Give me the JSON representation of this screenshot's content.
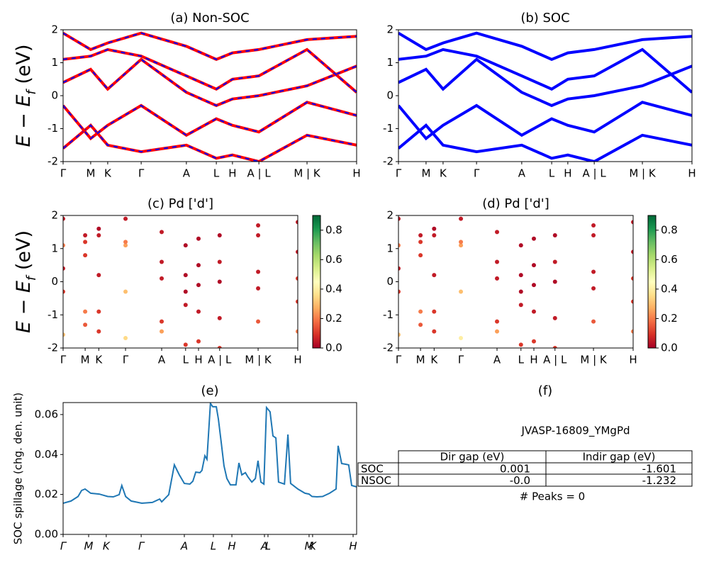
{
  "chart_data": [
    {
      "type": "bands",
      "title": "(a) Non-SOC",
      "ylabel": [
        "E − E",
        "f",
        " (eV)"
      ],
      "line_color": "#ff0000",
      "dash_color": "#0000ff",
      "x": [
        0,
        0.094,
        0.152,
        0.266,
        0.42,
        0.522,
        0.577,
        0.667,
        0.831,
        1
      ],
      "xlim": [
        0,
        1
      ],
      "ylim": [
        -2,
        2
      ],
      "yticks": [
        -2,
        -1,
        0,
        1,
        2
      ],
      "xticks": [
        {
          "value": 0,
          "label": "Γ"
        },
        {
          "value": 0.094,
          "label": "M"
        },
        {
          "value": 0.152,
          "label": "K"
        },
        {
          "value": 0.266,
          "label": "Γ"
        },
        {
          "value": 0.42,
          "label": "A"
        },
        {
          "value": 0.522,
          "label": "L"
        },
        {
          "value": 0.577,
          "label": "H"
        },
        {
          "value": 0.667,
          "label": "A | L"
        },
        {
          "value": 0.831,
          "label": "M | K"
        },
        {
          "value": 1,
          "label": "H"
        }
      ],
      "series": [
        {
          "values": [
            -1.6,
            -0.9,
            -1.5,
            -1.7,
            -1.5,
            -1.9,
            -1.8,
            -2,
            -1.2,
            -1.5
          ]
        },
        {
          "values": [
            -0.3,
            -1.3,
            -0.9,
            -0.3,
            -1.2,
            -0.7,
            -0.9,
            -1.1,
            -0.2,
            -0.6
          ]
        },
        {
          "values": [
            0.4,
            0.8,
            0.2,
            1.1,
            0.1,
            -0.3,
            -0.1,
            0,
            0.3,
            0.9
          ]
        },
        {
          "values": [
            1.1,
            1.2,
            1.4,
            1.2,
            0.6,
            0.2,
            0.5,
            0.6,
            1.4,
            0.1
          ]
        },
        {
          "values": [
            1.9,
            1.4,
            1.6,
            1.9,
            1.5,
            1.1,
            1.3,
            1.4,
            1.7,
            1.8
          ]
        }
      ]
    },
    {
      "type": "bands",
      "title": "(b) SOC",
      "line_color": "#0000ff",
      "x": [
        0,
        0.094,
        0.152,
        0.266,
        0.42,
        0.522,
        0.577,
        0.667,
        0.831,
        1
      ],
      "xlim": [
        0,
        1
      ],
      "ylim": [
        -2,
        2
      ],
      "yticks": [
        -2,
        -1,
        0,
        1,
        2
      ],
      "xticks": [
        {
          "value": 0,
          "label": "Γ"
        },
        {
          "value": 0.094,
          "label": "M"
        },
        {
          "value": 0.152,
          "label": "K"
        },
        {
          "value": 0.266,
          "label": "Γ"
        },
        {
          "value": 0.42,
          "label": "A"
        },
        {
          "value": 0.522,
          "label": "L"
        },
        {
          "value": 0.577,
          "label": "H"
        },
        {
          "value": 0.667,
          "label": "A | L"
        },
        {
          "value": 0.831,
          "label": "M | K"
        },
        {
          "value": 1,
          "label": "H"
        }
      ],
      "series": [
        {
          "values": [
            -1.6,
            -0.9,
            -1.5,
            -1.7,
            -1.5,
            -1.9,
            -1.8,
            -2,
            -1.2,
            -1.5
          ]
        },
        {
          "values": [
            -0.3,
            -1.3,
            -0.9,
            -0.3,
            -1.2,
            -0.7,
            -0.9,
            -1.1,
            -0.2,
            -0.6
          ]
        },
        {
          "values": [
            0.4,
            0.8,
            0.2,
            1.1,
            0.1,
            -0.3,
            -0.1,
            0,
            0.3,
            0.9
          ]
        },
        {
          "values": [
            1.1,
            1.2,
            1.4,
            1.2,
            0.6,
            0.2,
            0.5,
            0.6,
            1.4,
            0.1
          ]
        },
        {
          "values": [
            1.9,
            1.4,
            1.6,
            1.9,
            1.5,
            1.1,
            1.3,
            1.4,
            1.7,
            1.8
          ]
        }
      ]
    },
    {
      "type": "scatter",
      "title": "(c)  Pd ['d']",
      "ylabel": [
        "E − E",
        "f",
        " (eV)"
      ],
      "colormap": [
        "#a50026",
        "#d73027",
        "#f46d43",
        "#fdae61",
        "#fee08b",
        "#ffffbf",
        "#d9ef8b",
        "#a6d96a",
        "#66bd63",
        "#1a9850",
        "#006837"
      ],
      "clim": [
        0,
        0.9
      ],
      "cticks": [
        {
          "value": 0,
          "label": "0.0"
        },
        0.2,
        0.4,
        0.6,
        0.8
      ],
      "x": [
        0,
        0.094,
        0.152,
        0.266,
        0.42,
        0.522,
        0.577,
        0.667,
        0.831,
        1
      ],
      "xlim": [
        0,
        1
      ],
      "ylim": [
        -2,
        2
      ],
      "yticks": [
        -2,
        -1,
        0,
        1,
        2
      ],
      "xticks": [
        {
          "value": 0,
          "label": "Γ"
        },
        {
          "value": 0.094,
          "label": "M"
        },
        {
          "value": 0.152,
          "label": "K"
        },
        {
          "value": 0.266,
          "label": "Γ"
        },
        {
          "value": 0.42,
          "label": "A"
        },
        {
          "value": 0.522,
          "label": "L"
        },
        {
          "value": 0.577,
          "label": "H"
        },
        {
          "value": 0.667,
          "label": "A | L"
        },
        {
          "value": 0.831,
          "label": "M | K"
        },
        {
          "value": 1,
          "label": "H"
        }
      ],
      "series": [
        {
          "values": [
            -1.6,
            -0.9,
            -1.5,
            -1.7,
            -1.5,
            -1.9,
            -1.8,
            -2,
            -1.2,
            -1.5
          ],
          "weights": [
            0.3,
            0.2,
            0.1,
            0.35,
            0.25,
            0.1,
            0.1,
            0.1,
            0.15,
            0.2
          ]
        },
        {
          "values": [
            -0.3,
            -1.3,
            -0.9,
            -0.3,
            -1.2,
            -0.7,
            -0.9,
            -1.1,
            -0.2,
            -0.6
          ],
          "weights": [
            0.1,
            0.15,
            0.1,
            0.3,
            0.1,
            0.05,
            0.05,
            0.05,
            0.05,
            0.1
          ]
        },
        {
          "values": [
            0.4,
            0.8,
            0.2,
            1.1,
            0.1,
            -0.3,
            -0.1,
            0,
            0.3,
            0.9
          ],
          "weights": [
            0.05,
            0.1,
            0.05,
            0.25,
            0.05,
            0.02,
            0.02,
            0.02,
            0.05,
            0.05
          ]
        },
        {
          "values": [
            1.1,
            1.2,
            1.4,
            1.2,
            0.6,
            0.2,
            0.5,
            0.6,
            1.4,
            0.1
          ],
          "weights": [
            0.2,
            0.1,
            0.05,
            0.2,
            0.05,
            0.02,
            0.02,
            0.05,
            0.05,
            0.1
          ]
        },
        {
          "values": [
            1.9,
            1.4,
            1.6,
            1.9,
            1.5,
            1.1,
            1.3,
            1.4,
            1.7,
            1.8
          ],
          "weights": [
            0.05,
            0.05,
            0.02,
            0.05,
            0.05,
            0.02,
            0.02,
            0.02,
            0.05,
            0.05
          ]
        }
      ]
    },
    {
      "type": "scatter",
      "title": "(d) Pd ['d']",
      "colormap": [
        "#a50026",
        "#d73027",
        "#f46d43",
        "#fdae61",
        "#fee08b",
        "#ffffbf",
        "#d9ef8b",
        "#a6d96a",
        "#66bd63",
        "#1a9850",
        "#006837"
      ],
      "clim": [
        0,
        0.9
      ],
      "cticks": [
        {
          "value": 0,
          "label": "0.0"
        },
        0.2,
        0.4,
        0.6,
        0.8
      ],
      "x": [
        0,
        0.094,
        0.152,
        0.266,
        0.42,
        0.522,
        0.577,
        0.667,
        0.831,
        1
      ],
      "xlim": [
        0,
        1
      ],
      "ylim": [
        -2,
        2
      ],
      "yticks": [
        -2,
        -1,
        0,
        1,
        2
      ],
      "xticks": [
        {
          "value": 0,
          "label": "Γ"
        },
        {
          "value": 0.094,
          "label": "M"
        },
        {
          "value": 0.152,
          "label": "K"
        },
        {
          "value": 0.266,
          "label": "Γ"
        },
        {
          "value": 0.42,
          "label": "A"
        },
        {
          "value": 0.522,
          "label": "L"
        },
        {
          "value": 0.577,
          "label": "H"
        },
        {
          "value": 0.667,
          "label": "A | L"
        },
        {
          "value": 0.831,
          "label": "M | K"
        },
        {
          "value": 1,
          "label": "H"
        }
      ],
      "series": [
        {
          "values": [
            -1.6,
            -0.9,
            -1.5,
            -1.7,
            -1.5,
            -1.9,
            -1.8,
            -2,
            -1.2,
            -1.5
          ],
          "weights": [
            0.3,
            0.2,
            0.1,
            0.4,
            0.25,
            0.1,
            0.1,
            0.1,
            0.15,
            0.2
          ]
        },
        {
          "values": [
            -0.3,
            -1.3,
            -0.9,
            -0.3,
            -1.2,
            -0.7,
            -0.9,
            -1.1,
            -0.2,
            -0.6
          ],
          "weights": [
            0.1,
            0.15,
            0.1,
            0.3,
            0.1,
            0.05,
            0.05,
            0.05,
            0.05,
            0.1
          ]
        },
        {
          "values": [
            0.4,
            0.8,
            0.2,
            1.1,
            0.1,
            -0.3,
            -0.1,
            0,
            0.3,
            0.9
          ],
          "weights": [
            0.05,
            0.1,
            0.05,
            0.25,
            0.05,
            0.02,
            0.02,
            0.02,
            0.05,
            0.05
          ]
        },
        {
          "values": [
            1.1,
            1.2,
            1.4,
            1.2,
            0.6,
            0.2,
            0.5,
            0.6,
            1.4,
            0.1
          ],
          "weights": [
            0.2,
            0.1,
            0.05,
            0.2,
            0.05,
            0.02,
            0.02,
            0.05,
            0.05,
            0.1
          ]
        },
        {
          "values": [
            1.9,
            1.4,
            1.6,
            1.9,
            1.5,
            1.1,
            1.3,
            1.4,
            1.7,
            1.8
          ],
          "weights": [
            0.05,
            0.05,
            0.02,
            0.05,
            0.05,
            0.02,
            0.02,
            0.02,
            0.05,
            0.05
          ]
        }
      ]
    },
    {
      "type": "line",
      "title": "(e)",
      "ylabel_text": "SOC spillage (chg. den. unit)",
      "color": "#1f77b4",
      "italic_ticks": true,
      "xlim": [
        0,
        1
      ],
      "ylim": [
        0,
        0.066
      ],
      "yticks": [
        {
          "value": 0,
          "label": "0.00"
        },
        {
          "value": 0.02,
          "label": "0.02"
        },
        {
          "value": 0.04,
          "label": "0.04"
        },
        {
          "value": 0.06,
          "label": "0.06"
        }
      ],
      "xticks": [
        {
          "value": 0,
          "label": "Γ"
        },
        {
          "value": 0.087,
          "label": "M"
        },
        {
          "value": 0.147,
          "label": "K"
        },
        {
          "value": 0.266,
          "label": "Γ"
        },
        {
          "value": 0.413,
          "label": "A"
        },
        {
          "value": 0.512,
          "label": "L"
        },
        {
          "value": 0.575,
          "label": "H"
        },
        {
          "value": 0.686,
          "label": "A"
        },
        {
          "value": 0.698,
          "label": "L"
        },
        {
          "value": 0.838,
          "label": "M"
        },
        {
          "value": 0.85,
          "label": "K"
        },
        {
          "value": 0.988,
          "label": "H"
        }
      ],
      "x": [
        0,
        0.027,
        0.051,
        0.063,
        0.075,
        0.094,
        0.123,
        0.152,
        0.171,
        0.191,
        0.2,
        0.213,
        0.232,
        0.268,
        0.304,
        0.329,
        0.336,
        0.36,
        0.379,
        0.396,
        0.413,
        0.432,
        0.442,
        0.452,
        0.466,
        0.473,
        0.483,
        0.49,
        0.502,
        0.51,
        0.522,
        0.529,
        0.539,
        0.548,
        0.558,
        0.57,
        0.589,
        0.599,
        0.609,
        0.621,
        0.63,
        0.643,
        0.655,
        0.664,
        0.674,
        0.684,
        0.693,
        0.705,
        0.715,
        0.725,
        0.734,
        0.754,
        0.766,
        0.775,
        0.8,
        0.824,
        0.838,
        0.848,
        0.865,
        0.884,
        0.908,
        0.93,
        0.937,
        0.949,
        0.964,
        0.973,
        0.983,
        1
      ],
      "values": [
        0.0156,
        0.0167,
        0.019,
        0.022,
        0.0227,
        0.0206,
        0.0202,
        0.019,
        0.0188,
        0.0199,
        0.0245,
        0.019,
        0.0167,
        0.0156,
        0.016,
        0.0177,
        0.0163,
        0.0199,
        0.0348,
        0.0298,
        0.0255,
        0.0252,
        0.0266,
        0.0312,
        0.0309,
        0.032,
        0.0394,
        0.0376,
        0.0656,
        0.0639,
        0.0639,
        0.0578,
        0.0458,
        0.0344,
        0.028,
        0.0248,
        0.0248,
        0.0358,
        0.0298,
        0.0309,
        0.0287,
        0.0262,
        0.028,
        0.0369,
        0.0262,
        0.0252,
        0.0635,
        0.0614,
        0.0493,
        0.0483,
        0.0262,
        0.0252,
        0.05,
        0.0255,
        0.0227,
        0.0206,
        0.0202,
        0.019,
        0.0188,
        0.019,
        0.0206,
        0.0227,
        0.0444,
        0.0355,
        0.0351,
        0.0348,
        0.0245,
        0.0238
      ]
    },
    {
      "type": "table",
      "title": "(f)",
      "subtitle": "JVASP-16809_YMgPd",
      "columns": [
        "Dir gap (eV)",
        "Indir gap (eV)"
      ],
      "rows": [
        {
          "label": "SOC",
          "cells": [
            "0.001",
            "-1.601"
          ]
        },
        {
          "label": "NSOC",
          "cells": [
            "-0.0",
            "-1.232"
          ]
        }
      ],
      "note": "# Peaks = 0"
    }
  ]
}
